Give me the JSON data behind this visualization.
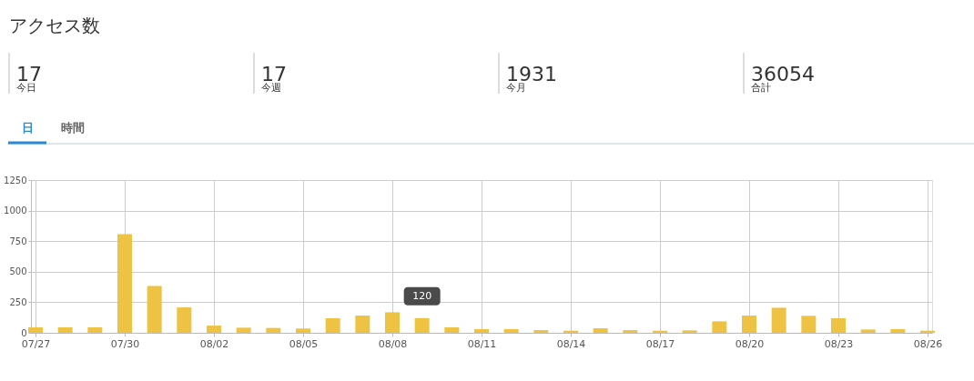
{
  "chart_data": {
    "type": "bar",
    "title": "アクセス数",
    "annotations": [
      "17",
      "今日",
      "17",
      "今週",
      "1931",
      "今月",
      "36054",
      "合計",
      "日",
      "時間"
    ],
    "categories": [
      "07/27",
      null,
      null,
      "07/30",
      null,
      null,
      "08/02",
      null,
      null,
      "08/05",
      null,
      null,
      "08/08",
      null,
      null,
      "08/11",
      null,
      null,
      "08/14",
      null,
      null,
      "08/17",
      null,
      null,
      "08/20",
      null,
      null,
      "08/23",
      null,
      null,
      "08/26"
    ],
    "values": [
      45,
      45,
      45,
      807,
      384,
      208,
      59,
      42,
      40,
      35,
      119,
      141,
      168,
      120,
      45,
      30,
      30,
      22,
      17,
      37,
      22,
      17,
      20,
      94,
      141,
      205,
      139,
      119,
      27,
      30,
      17
    ],
    "value_labels": [
      null,
      null,
      null,
      null,
      null,
      null,
      null,
      null,
      null,
      null,
      null,
      null,
      null,
      "120",
      null,
      null,
      null,
      null,
      null,
      null,
      null,
      null,
      null,
      null,
      null,
      null,
      null,
      null,
      null,
      null,
      null
    ],
    "color": "#eec242",
    "ylim": [
      0,
      1250
    ],
    "yticks": [
      0,
      250,
      500,
      750,
      1000,
      1250
    ],
    "grid": true
  }
}
